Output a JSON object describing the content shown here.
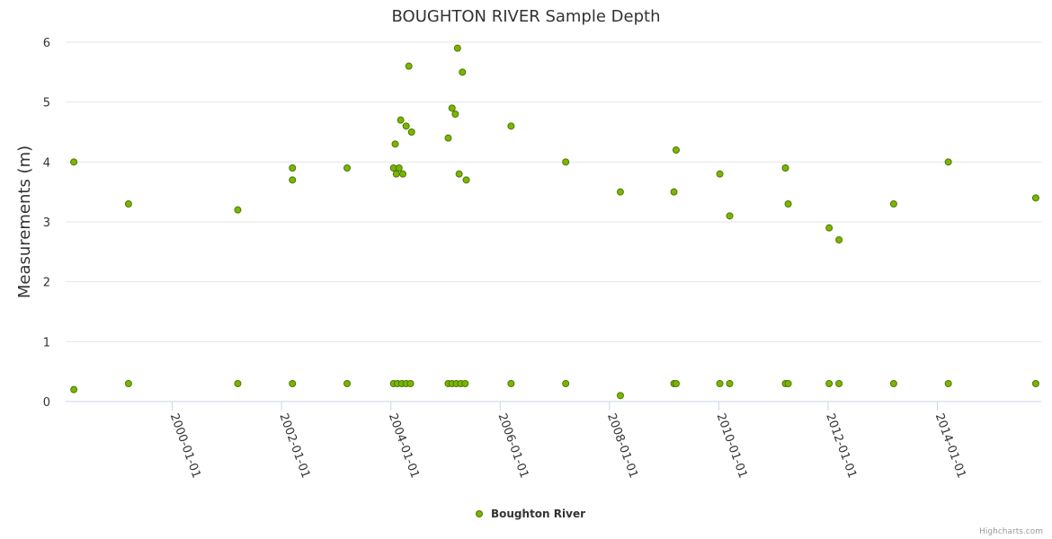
{
  "chart_data": {
    "type": "scatter",
    "title": "BOUGHTON RIVER Sample Depth",
    "xlabel": "",
    "ylabel": "Measurements (m)",
    "ylim": [
      0,
      6
    ],
    "yticks": [
      0,
      1,
      2,
      3,
      4,
      5,
      6
    ],
    "xlim": [
      1998.05,
      2015.9
    ],
    "xticks": [
      {
        "label": "2000-01-01",
        "value": 2000.0
      },
      {
        "label": "2002-01-01",
        "value": 2002.0
      },
      {
        "label": "2004-01-01",
        "value": 2004.0
      },
      {
        "label": "2006-01-01",
        "value": 2006.0
      },
      {
        "label": "2008-01-01",
        "value": 2008.0
      },
      {
        "label": "2010-01-01",
        "value": 2010.0
      },
      {
        "label": "2012-01-01",
        "value": 2012.0
      },
      {
        "label": "2014-01-01",
        "value": 2014.0
      }
    ],
    "grid": true,
    "legend_position": "bottom-center",
    "series": [
      {
        "name": "Boughton River",
        "color": "#7cb500",
        "points": [
          [
            1998.2,
            4.0
          ],
          [
            1998.2,
            0.2
          ],
          [
            1999.2,
            3.3
          ],
          [
            1999.2,
            0.3
          ],
          [
            2001.2,
            3.2
          ],
          [
            2001.2,
            0.3
          ],
          [
            2002.2,
            3.9
          ],
          [
            2002.2,
            3.7
          ],
          [
            2002.2,
            0.3
          ],
          [
            2003.2,
            3.9
          ],
          [
            2003.2,
            0.3
          ],
          [
            2004.05,
            3.9
          ],
          [
            2004.08,
            4.3
          ],
          [
            2004.1,
            3.8
          ],
          [
            2004.15,
            3.9
          ],
          [
            2004.18,
            4.7
          ],
          [
            2004.22,
            3.8
          ],
          [
            2004.28,
            4.6
          ],
          [
            2004.33,
            5.6
          ],
          [
            2004.38,
            4.5
          ],
          [
            2004.05,
            0.3
          ],
          [
            2004.12,
            0.3
          ],
          [
            2004.2,
            0.3
          ],
          [
            2004.28,
            0.3
          ],
          [
            2004.36,
            0.3
          ],
          [
            2005.05,
            4.4
          ],
          [
            2005.12,
            4.9
          ],
          [
            2005.18,
            4.8
          ],
          [
            2005.22,
            5.9
          ],
          [
            2005.25,
            3.8
          ],
          [
            2005.31,
            5.5
          ],
          [
            2005.38,
            3.7
          ],
          [
            2005.05,
            0.3
          ],
          [
            2005.12,
            0.3
          ],
          [
            2005.2,
            0.3
          ],
          [
            2005.28,
            0.3
          ],
          [
            2005.36,
            0.3
          ],
          [
            2006.2,
            4.6
          ],
          [
            2006.2,
            0.3
          ],
          [
            2007.2,
            4.0
          ],
          [
            2007.2,
            0.3
          ],
          [
            2008.2,
            3.5
          ],
          [
            2008.2,
            0.1
          ],
          [
            2009.18,
            3.5
          ],
          [
            2009.22,
            4.2
          ],
          [
            2009.18,
            0.3
          ],
          [
            2009.22,
            0.3
          ],
          [
            2010.02,
            3.8
          ],
          [
            2010.2,
            3.1
          ],
          [
            2010.02,
            0.3
          ],
          [
            2010.2,
            0.3
          ],
          [
            2011.22,
            3.9
          ],
          [
            2011.27,
            3.3
          ],
          [
            2011.22,
            0.3
          ],
          [
            2011.27,
            0.3
          ],
          [
            2012.02,
            2.9
          ],
          [
            2012.2,
            2.7
          ],
          [
            2012.02,
            0.3
          ],
          [
            2012.2,
            0.3
          ],
          [
            2013.2,
            3.3
          ],
          [
            2013.2,
            0.3
          ],
          [
            2014.2,
            4.0
          ],
          [
            2014.2,
            0.3
          ],
          [
            2015.8,
            3.4
          ],
          [
            2015.8,
            0.3
          ]
        ]
      }
    ],
    "credits": "Highcharts.com"
  }
}
